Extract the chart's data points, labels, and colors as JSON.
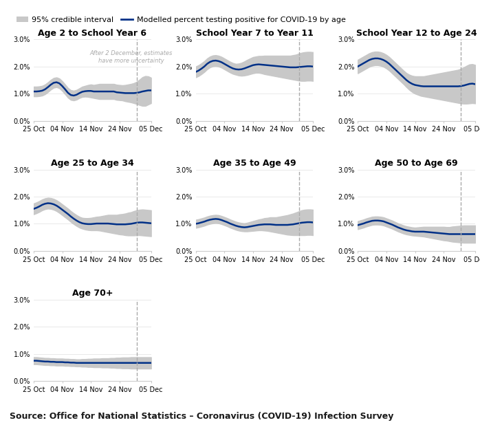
{
  "title_legend_ci": "95% credible interval",
  "title_legend_line": "Modelled percent testing positive for COVID-19 by age",
  "source_text": "Source: Office for National Statistics – Coronavirus (COVID-19) Infection Survey",
  "annotation_text": "After 2 December, estimates\nhave more uncertainty",
  "subplots": [
    {
      "title": "Age 2 to School Year 6",
      "line": [
        1.08,
        1.08,
        1.09,
        1.11,
        1.16,
        1.24,
        1.33,
        1.4,
        1.42,
        1.38,
        1.28,
        1.16,
        1.03,
        0.95,
        0.93,
        0.96,
        1.02,
        1.07,
        1.09,
        1.1,
        1.1,
        1.08,
        1.08,
        1.08,
        1.08,
        1.08,
        1.08,
        1.08,
        1.08,
        1.05,
        1.04,
        1.03,
        1.02,
        1.02,
        1.02,
        1.02,
        1.03,
        1.05,
        1.08,
        1.1,
        1.12,
        1.12
      ],
      "ci_lower": [
        0.9,
        0.9,
        0.91,
        0.93,
        0.98,
        1.06,
        1.15,
        1.22,
        1.24,
        1.2,
        1.1,
        0.98,
        0.85,
        0.77,
        0.75,
        0.78,
        0.84,
        0.88,
        0.89,
        0.88,
        0.86,
        0.84,
        0.82,
        0.8,
        0.8,
        0.8,
        0.8,
        0.8,
        0.8,
        0.77,
        0.76,
        0.75,
        0.72,
        0.7,
        0.68,
        0.65,
        0.62,
        0.58,
        0.55,
        0.55,
        0.6,
        0.65
      ],
      "ci_upper": [
        1.26,
        1.26,
        1.27,
        1.29,
        1.34,
        1.42,
        1.51,
        1.58,
        1.6,
        1.56,
        1.46,
        1.34,
        1.21,
        1.13,
        1.11,
        1.14,
        1.2,
        1.26,
        1.29,
        1.32,
        1.34,
        1.32,
        1.34,
        1.36,
        1.36,
        1.36,
        1.36,
        1.36,
        1.36,
        1.33,
        1.32,
        1.31,
        1.32,
        1.34,
        1.36,
        1.39,
        1.44,
        1.52,
        1.61,
        1.65,
        1.64,
        1.59
      ],
      "ylim": [
        0.0,
        3.0
      ],
      "show_annotation": true
    },
    {
      "title": "School Year 7 to Year 11",
      "line": [
        1.8,
        1.85,
        1.92,
        2.0,
        2.1,
        2.17,
        2.21,
        2.22,
        2.2,
        2.16,
        2.1,
        2.04,
        1.98,
        1.93,
        1.9,
        1.89,
        1.9,
        1.93,
        1.97,
        2.01,
        2.05,
        2.07,
        2.08,
        2.07,
        2.06,
        2.05,
        2.04,
        2.03,
        2.02,
        2.01,
        2.0,
        1.99,
        1.98,
        1.97,
        1.97,
        1.97,
        1.98,
        1.99,
        2.0,
        2.01,
        2.01,
        2.0
      ],
      "ci_lower": [
        1.6,
        1.65,
        1.72,
        1.8,
        1.9,
        1.97,
        2.01,
        2.02,
        2.0,
        1.96,
        1.9,
        1.84,
        1.78,
        1.73,
        1.7,
        1.67,
        1.66,
        1.67,
        1.69,
        1.72,
        1.75,
        1.77,
        1.77,
        1.75,
        1.72,
        1.7,
        1.68,
        1.66,
        1.64,
        1.62,
        1.6,
        1.58,
        1.56,
        1.54,
        1.52,
        1.5,
        1.48,
        1.47,
        1.47,
        1.48,
        1.48,
        1.47
      ],
      "ci_upper": [
        2.0,
        2.05,
        2.12,
        2.2,
        2.3,
        2.37,
        2.41,
        2.42,
        2.4,
        2.36,
        2.3,
        2.24,
        2.18,
        2.13,
        2.1,
        2.11,
        2.14,
        2.19,
        2.25,
        2.3,
        2.35,
        2.37,
        2.39,
        2.39,
        2.4,
        2.4,
        2.4,
        2.4,
        2.4,
        2.4,
        2.4,
        2.4,
        2.4,
        2.4,
        2.42,
        2.44,
        2.48,
        2.51,
        2.53,
        2.54,
        2.54,
        2.53
      ],
      "ylim": [
        0.0,
        3.0
      ],
      "show_annotation": false
    },
    {
      "title": "School Year 12 to Age 24",
      "line": [
        2.0,
        2.06,
        2.12,
        2.18,
        2.24,
        2.28,
        2.3,
        2.3,
        2.28,
        2.24,
        2.18,
        2.1,
        2.0,
        1.9,
        1.8,
        1.7,
        1.6,
        1.5,
        1.42,
        1.36,
        1.32,
        1.3,
        1.28,
        1.27,
        1.27,
        1.27,
        1.27,
        1.27,
        1.27,
        1.27,
        1.27,
        1.27,
        1.27,
        1.27,
        1.27,
        1.27,
        1.28,
        1.3,
        1.33,
        1.36,
        1.37,
        1.35
      ],
      "ci_lower": [
        1.75,
        1.81,
        1.87,
        1.93,
        1.99,
        2.03,
        2.05,
        2.05,
        2.03,
        1.99,
        1.93,
        1.85,
        1.75,
        1.65,
        1.55,
        1.45,
        1.35,
        1.24,
        1.14,
        1.06,
        1.0,
        0.96,
        0.92,
        0.9,
        0.88,
        0.86,
        0.84,
        0.82,
        0.8,
        0.78,
        0.76,
        0.74,
        0.72,
        0.7,
        0.68,
        0.66,
        0.64,
        0.63,
        0.63,
        0.64,
        0.65,
        0.64
      ],
      "ci_upper": [
        2.25,
        2.31,
        2.37,
        2.43,
        2.49,
        2.53,
        2.55,
        2.55,
        2.53,
        2.49,
        2.43,
        2.35,
        2.25,
        2.15,
        2.05,
        1.95,
        1.85,
        1.76,
        1.7,
        1.66,
        1.64,
        1.64,
        1.64,
        1.64,
        1.66,
        1.68,
        1.7,
        1.72,
        1.74,
        1.76,
        1.78,
        1.8,
        1.82,
        1.84,
        1.86,
        1.88,
        1.92,
        1.97,
        2.03,
        2.08,
        2.09,
        2.06
      ],
      "ylim": [
        0.0,
        3.0
      ],
      "show_annotation": false
    },
    {
      "title": "Age 25 to Age 34",
      "line": [
        1.55,
        1.59,
        1.64,
        1.7,
        1.74,
        1.76,
        1.75,
        1.72,
        1.67,
        1.6,
        1.52,
        1.44,
        1.36,
        1.27,
        1.19,
        1.12,
        1.06,
        1.02,
        1.0,
        0.99,
        0.99,
        1.0,
        1.01,
        1.01,
        1.01,
        1.01,
        1.01,
        1.0,
        0.99,
        0.98,
        0.98,
        0.98,
        0.98,
        0.99,
        1.0,
        1.02,
        1.04,
        1.05,
        1.05,
        1.04,
        1.03,
        1.02
      ],
      "ci_lower": [
        1.35,
        1.39,
        1.44,
        1.5,
        1.54,
        1.56,
        1.55,
        1.52,
        1.47,
        1.4,
        1.32,
        1.24,
        1.16,
        1.07,
        0.99,
        0.92,
        0.86,
        0.82,
        0.79,
        0.77,
        0.76,
        0.76,
        0.76,
        0.75,
        0.73,
        0.71,
        0.69,
        0.67,
        0.65,
        0.63,
        0.61,
        0.6,
        0.58,
        0.57,
        0.57,
        0.57,
        0.58,
        0.58,
        0.57,
        0.56,
        0.55,
        0.54
      ],
      "ci_upper": [
        1.75,
        1.79,
        1.84,
        1.9,
        1.94,
        1.96,
        1.95,
        1.92,
        1.87,
        1.8,
        1.72,
        1.64,
        1.56,
        1.47,
        1.39,
        1.32,
        1.26,
        1.22,
        1.21,
        1.21,
        1.22,
        1.24,
        1.26,
        1.27,
        1.29,
        1.31,
        1.33,
        1.33,
        1.33,
        1.33,
        1.35,
        1.36,
        1.38,
        1.41,
        1.43,
        1.47,
        1.5,
        1.52,
        1.53,
        1.52,
        1.51,
        1.5
      ],
      "ylim": [
        0.0,
        3.0
      ],
      "show_annotation": false
    },
    {
      "title": "Age 35 to Age 49",
      "line": [
        1.0,
        1.02,
        1.05,
        1.08,
        1.12,
        1.15,
        1.17,
        1.18,
        1.17,
        1.14,
        1.1,
        1.06,
        1.01,
        0.97,
        0.93,
        0.9,
        0.88,
        0.87,
        0.88,
        0.9,
        0.92,
        0.94,
        0.96,
        0.97,
        0.98,
        0.98,
        0.98,
        0.97,
        0.96,
        0.96,
        0.96,
        0.96,
        0.96,
        0.97,
        0.98,
        1.0,
        1.02,
        1.04,
        1.05,
        1.06,
        1.06,
        1.05
      ],
      "ci_lower": [
        0.85,
        0.87,
        0.9,
        0.93,
        0.97,
        1.0,
        1.02,
        1.03,
        1.02,
        0.99,
        0.95,
        0.91,
        0.86,
        0.82,
        0.78,
        0.75,
        0.73,
        0.72,
        0.72,
        0.73,
        0.74,
        0.75,
        0.76,
        0.76,
        0.75,
        0.74,
        0.72,
        0.7,
        0.68,
        0.66,
        0.64,
        0.62,
        0.6,
        0.59,
        0.58,
        0.58,
        0.58,
        0.58,
        0.58,
        0.59,
        0.59,
        0.58
      ],
      "ci_upper": [
        1.15,
        1.17,
        1.2,
        1.23,
        1.27,
        1.3,
        1.32,
        1.33,
        1.32,
        1.29,
        1.25,
        1.21,
        1.16,
        1.12,
        1.08,
        1.05,
        1.03,
        1.02,
        1.04,
        1.07,
        1.1,
        1.13,
        1.16,
        1.18,
        1.21,
        1.22,
        1.24,
        1.24,
        1.24,
        1.26,
        1.28,
        1.3,
        1.32,
        1.35,
        1.38,
        1.42,
        1.46,
        1.5,
        1.52,
        1.53,
        1.53,
        1.52
      ],
      "ylim": [
        0.0,
        3.0
      ],
      "show_annotation": false
    },
    {
      "title": "Age 50 to Age 69",
      "line": [
        0.95,
        0.98,
        1.01,
        1.05,
        1.08,
        1.11,
        1.12,
        1.12,
        1.11,
        1.09,
        1.05,
        1.01,
        0.97,
        0.92,
        0.87,
        0.83,
        0.79,
        0.76,
        0.74,
        0.72,
        0.71,
        0.71,
        0.71,
        0.71,
        0.7,
        0.69,
        0.68,
        0.67,
        0.66,
        0.65,
        0.64,
        0.63,
        0.62,
        0.62,
        0.62,
        0.62,
        0.62,
        0.62,
        0.62,
        0.62,
        0.62,
        0.62
      ],
      "ci_lower": [
        0.8,
        0.83,
        0.86,
        0.9,
        0.93,
        0.96,
        0.97,
        0.97,
        0.96,
        0.94,
        0.9,
        0.86,
        0.82,
        0.77,
        0.72,
        0.68,
        0.64,
        0.61,
        0.59,
        0.57,
        0.56,
        0.55,
        0.54,
        0.53,
        0.51,
        0.49,
        0.47,
        0.45,
        0.43,
        0.41,
        0.39,
        0.38,
        0.36,
        0.34,
        0.33,
        0.32,
        0.31,
        0.3,
        0.3,
        0.3,
        0.3,
        0.3
      ],
      "ci_upper": [
        1.1,
        1.13,
        1.16,
        1.2,
        1.23,
        1.26,
        1.27,
        1.27,
        1.26,
        1.24,
        1.2,
        1.16,
        1.12,
        1.07,
        1.02,
        0.98,
        0.94,
        0.91,
        0.89,
        0.87,
        0.86,
        0.87,
        0.88,
        0.89,
        0.89,
        0.89,
        0.89,
        0.89,
        0.89,
        0.89,
        0.89,
        0.88,
        0.88,
        0.9,
        0.91,
        0.92,
        0.93,
        0.94,
        0.94,
        0.94,
        0.94,
        0.94
      ],
      "ylim": [
        0.0,
        3.0
      ],
      "show_annotation": false
    },
    {
      "title": "Age 70+",
      "line": [
        0.75,
        0.75,
        0.74,
        0.73,
        0.72,
        0.72,
        0.71,
        0.71,
        0.7,
        0.7,
        0.7,
        0.69,
        0.69,
        0.68,
        0.68,
        0.67,
        0.67,
        0.67,
        0.67,
        0.67,
        0.67,
        0.67,
        0.67,
        0.67,
        0.67,
        0.67,
        0.67,
        0.67,
        0.67,
        0.67,
        0.67,
        0.67,
        0.67,
        0.67,
        0.67,
        0.67,
        0.67,
        0.67,
        0.67,
        0.67,
        0.67,
        0.67
      ],
      "ci_lower": [
        0.62,
        0.62,
        0.61,
        0.6,
        0.59,
        0.59,
        0.58,
        0.58,
        0.57,
        0.57,
        0.57,
        0.56,
        0.56,
        0.55,
        0.55,
        0.54,
        0.54,
        0.53,
        0.53,
        0.52,
        0.52,
        0.51,
        0.51,
        0.51,
        0.5,
        0.5,
        0.5,
        0.49,
        0.49,
        0.48,
        0.48,
        0.47,
        0.47,
        0.47,
        0.46,
        0.46,
        0.46,
        0.46,
        0.46,
        0.46,
        0.46,
        0.46
      ],
      "ci_upper": [
        0.88,
        0.88,
        0.87,
        0.86,
        0.85,
        0.85,
        0.84,
        0.84,
        0.83,
        0.83,
        0.83,
        0.82,
        0.82,
        0.81,
        0.81,
        0.8,
        0.8,
        0.81,
        0.81,
        0.82,
        0.82,
        0.83,
        0.83,
        0.83,
        0.84,
        0.84,
        0.84,
        0.85,
        0.85,
        0.86,
        0.86,
        0.87,
        0.87,
        0.87,
        0.88,
        0.88,
        0.88,
        0.88,
        0.88,
        0.88,
        0.88,
        0.88
      ],
      "ylim": [
        0.0,
        3.0
      ],
      "show_annotation": false
    }
  ],
  "x_tick_labels": [
    "25 Oct",
    "04 Nov",
    "14 Nov",
    "24 Nov",
    "05 Dec"
  ],
  "x_tick_positions": [
    0,
    10,
    20,
    30,
    41
  ],
  "dashed_line_x": 36,
  "n_points": 42,
  "line_color": "#003087",
  "ci_color": "#C8C8C8",
  "dashed_color": "#AAAAAA",
  "annotation_color": "#AAAAAA",
  "background_color": "#FFFFFF",
  "title_fontsize": 9,
  "tick_fontsize": 7,
  "source_fontsize": 9,
  "legend_fontsize": 8
}
